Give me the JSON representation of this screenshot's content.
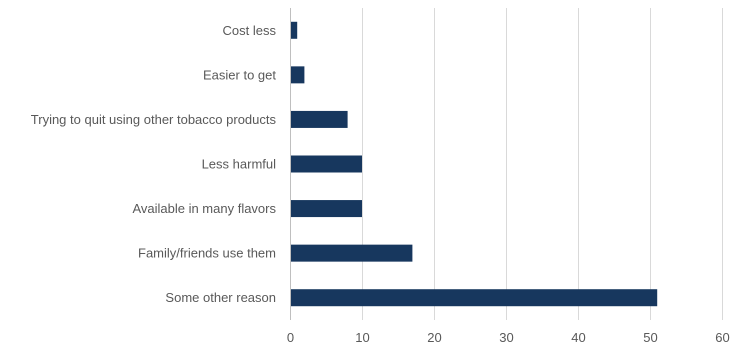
{
  "chart_data": {
    "type": "bar",
    "orientation": "horizontal",
    "categories": [
      "Cost less",
      "Easier to get",
      "Trying to quit using other tobacco products",
      "Less harmful",
      "Available in many flavors",
      "Family/friends use them",
      "Some other reason"
    ],
    "values": [
      1,
      2,
      8,
      10,
      10,
      17,
      51
    ],
    "xlim": [
      0,
      60
    ],
    "x_ticks": [
      0,
      10,
      20,
      30,
      40,
      50,
      60
    ],
    "grid": true,
    "legend": "none",
    "bar_color": "#17375e"
  }
}
